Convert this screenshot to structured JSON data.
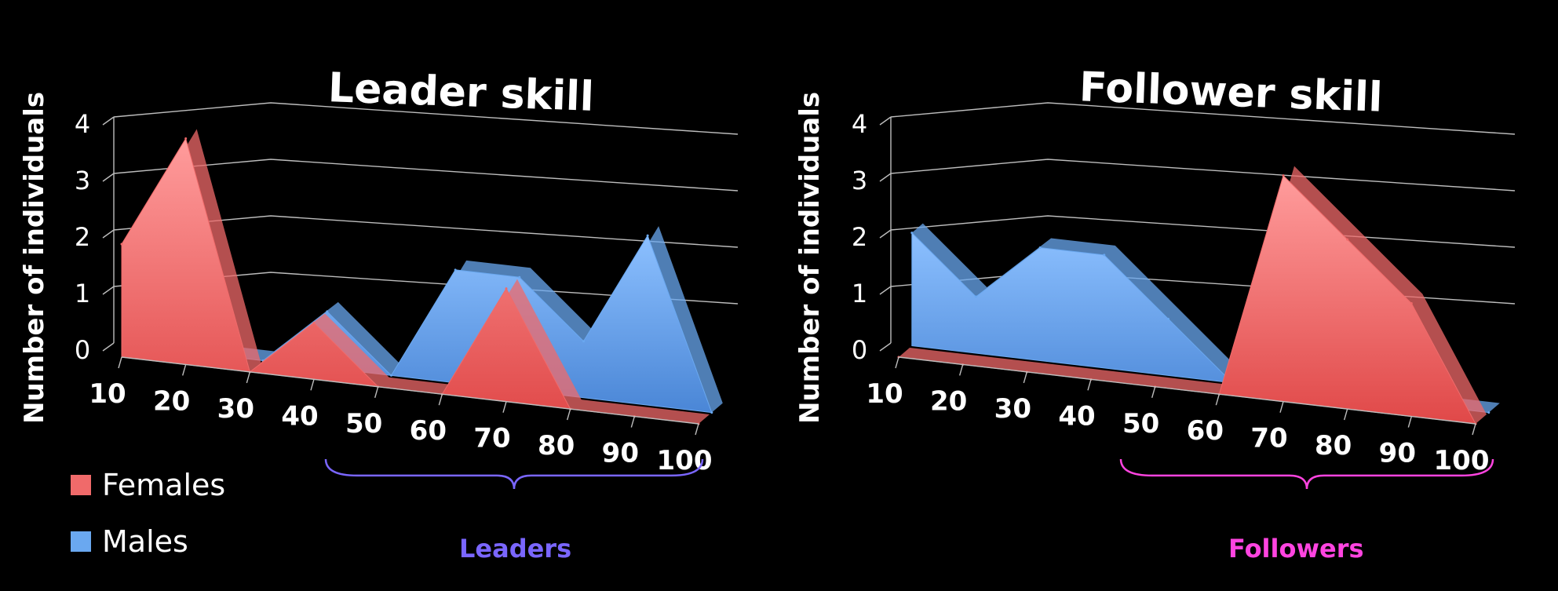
{
  "legend": {
    "females_label": "Females",
    "males_label": "Males",
    "females_color": "#f06a6a",
    "males_color": "#6aa8f0"
  },
  "annotations": {
    "leaders_label": "Leaders",
    "leaders_color": "#7a66ff",
    "followers_label": "Followers",
    "followers_color": "#ff44e0"
  },
  "chart_data": [
    {
      "type": "area",
      "style": "3d",
      "title": "Leader skill",
      "xlabel": "",
      "ylabel": "Number of individuals",
      "categories": [
        "10",
        "20",
        "30",
        "40",
        "50",
        "60",
        "70",
        "80",
        "90",
        "100"
      ],
      "ylim": [
        0,
        4
      ],
      "yticks": [
        "0",
        "1",
        "2",
        "3",
        "4"
      ],
      "grid": true,
      "legend_position": "bottom-left",
      "series": [
        {
          "name": "Males",
          "color": "#6aa8f0",
          "values": [
            0,
            0,
            0,
            1,
            0,
            2,
            2,
            1,
            3,
            0
          ]
        },
        {
          "name": "Females",
          "color": "#f06a6a",
          "values": [
            2,
            4,
            0,
            1,
            0,
            0,
            2,
            0,
            0,
            0
          ]
        }
      ]
    },
    {
      "type": "area",
      "style": "3d",
      "title": "Follower skill",
      "xlabel": "",
      "ylabel": "Number of individuals",
      "categories": [
        "10",
        "20",
        "30",
        "40",
        "50",
        "60",
        "70",
        "80",
        "90",
        "100"
      ],
      "ylim": [
        0,
        4
      ],
      "yticks": [
        "0",
        "1",
        "2",
        "3",
        "4"
      ],
      "grid": true,
      "legend_position": "bottom-left",
      "series": [
        {
          "name": "Males",
          "color": "#6aa8f0",
          "values": [
            2,
            1,
            2,
            2,
            1,
            0,
            0,
            1,
            0,
            0
          ]
        },
        {
          "name": "Females",
          "color": "#f06a6a",
          "values": [
            0,
            0,
            0,
            0,
            0,
            0,
            4,
            3,
            2,
            0
          ]
        }
      ]
    }
  ]
}
